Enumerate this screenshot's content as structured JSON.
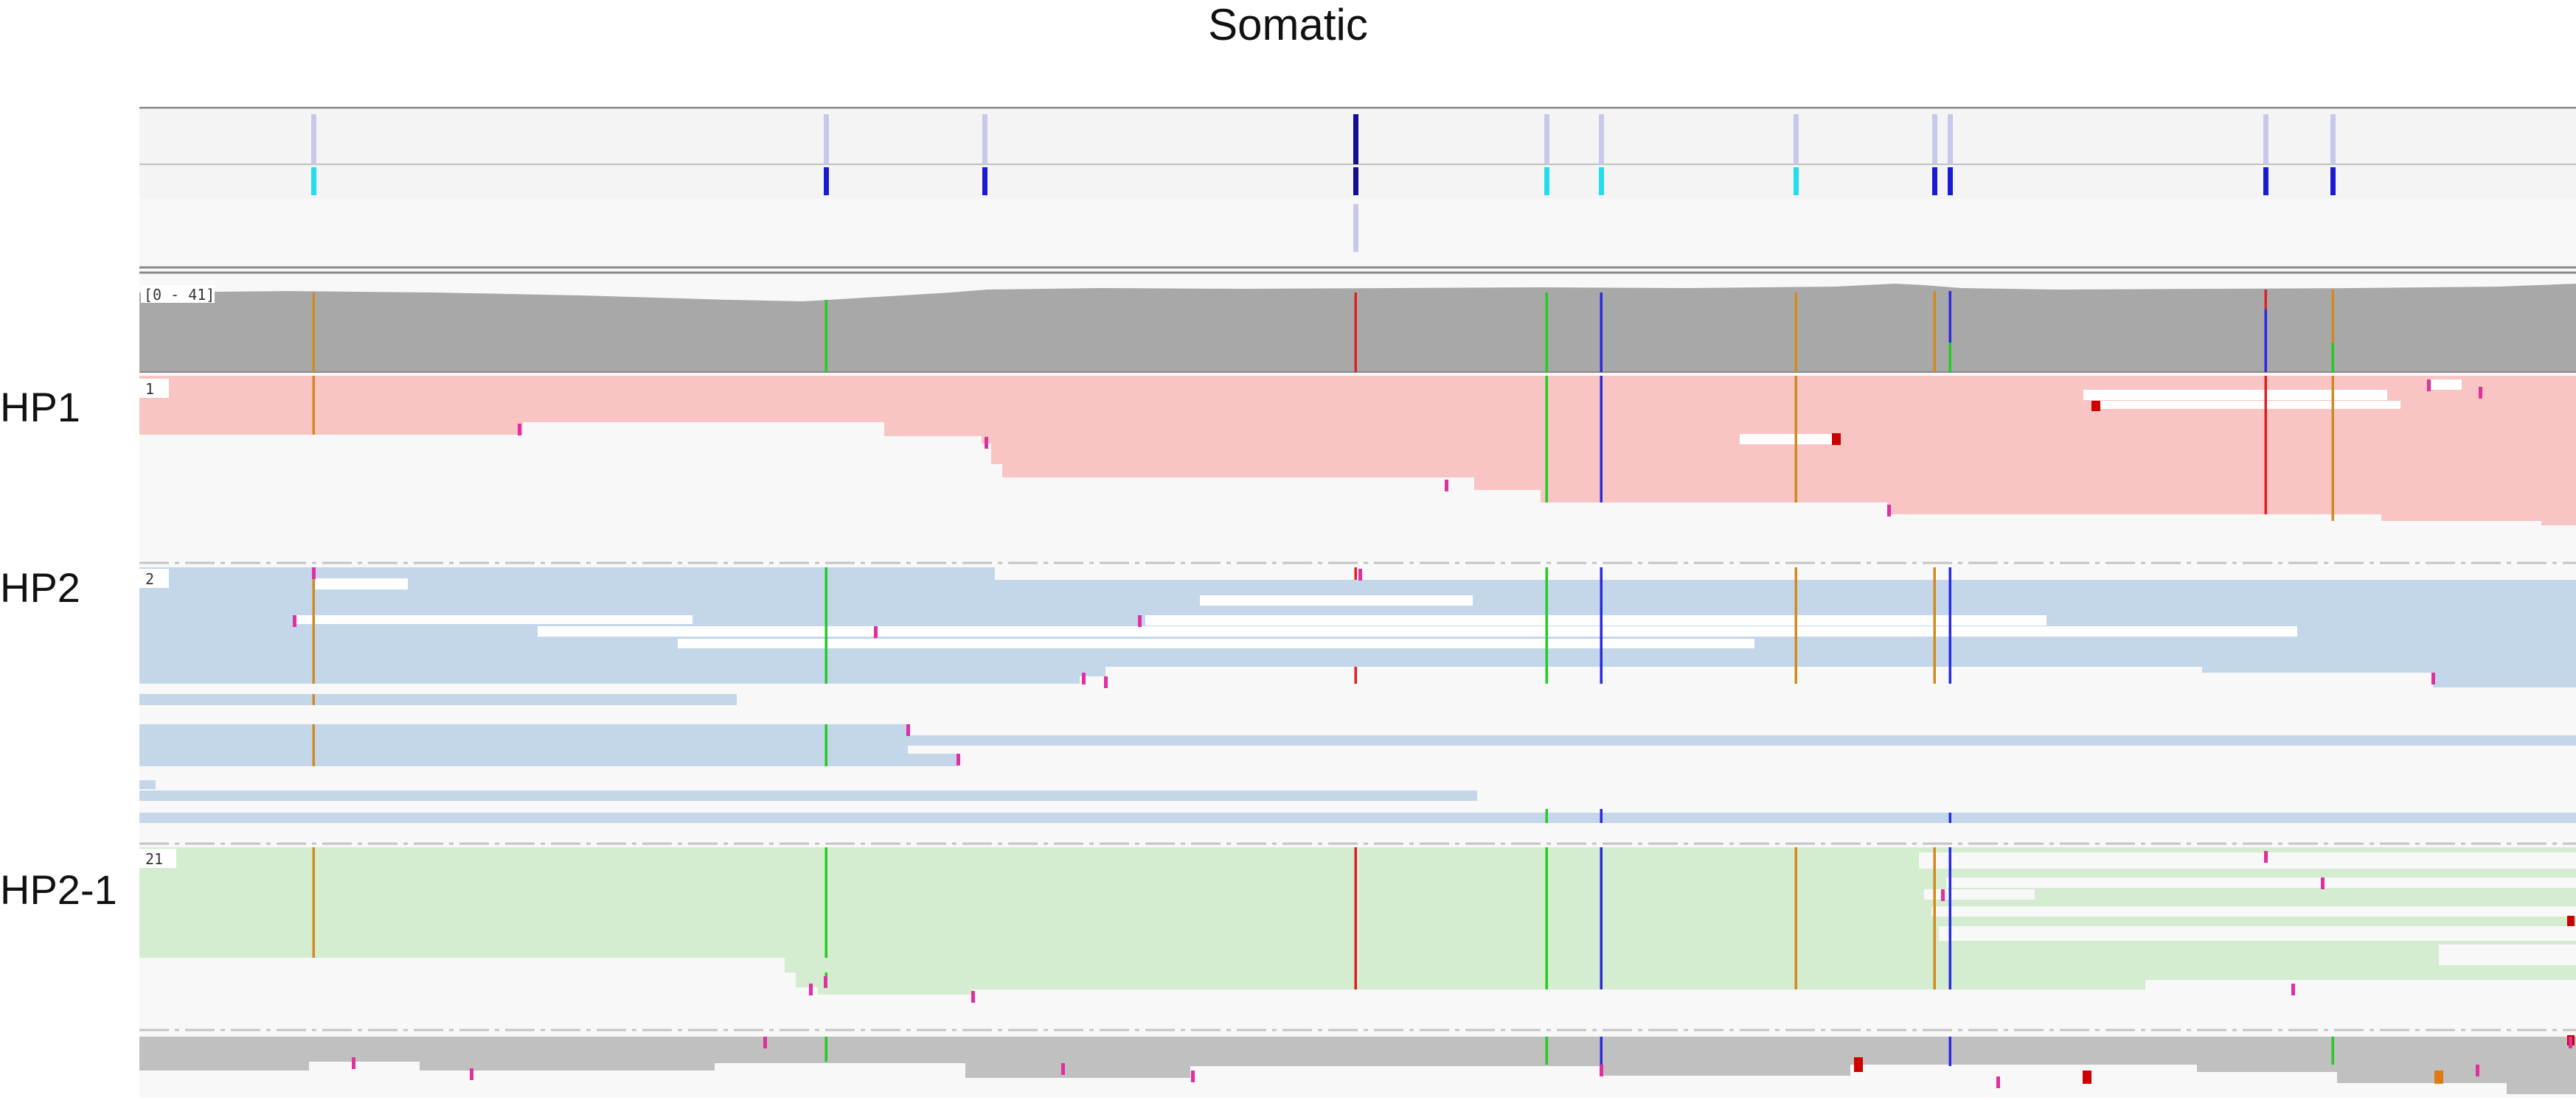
{
  "title": "Somatic",
  "labels": {
    "hp1": "HP1",
    "hp2": "HP2",
    "hp2_1": "HP2-1"
  },
  "coverage": {
    "range_label": "[0 - 41]"
  },
  "groups": {
    "hp1_tag": "1",
    "hp2_tag": "2",
    "hp2_1_tag": "21"
  },
  "colors": {
    "hp1_reads": "#f8c4c4",
    "hp2_reads": "#c4d6ea",
    "hp2_1_reads": "#d4ecd0",
    "coverage": "#a8a8a8",
    "variant_light": "#c8c8ec",
    "variant_cyan": "#22ddee",
    "variant_blue": "#1a1ad0",
    "variant_navy": "#101090",
    "allele_A": "#22cc22",
    "allele_C": "#2a2ae0",
    "allele_G": "#d08a20",
    "allele_T": "#e02020",
    "insertion": "#e030a0"
  }
}
